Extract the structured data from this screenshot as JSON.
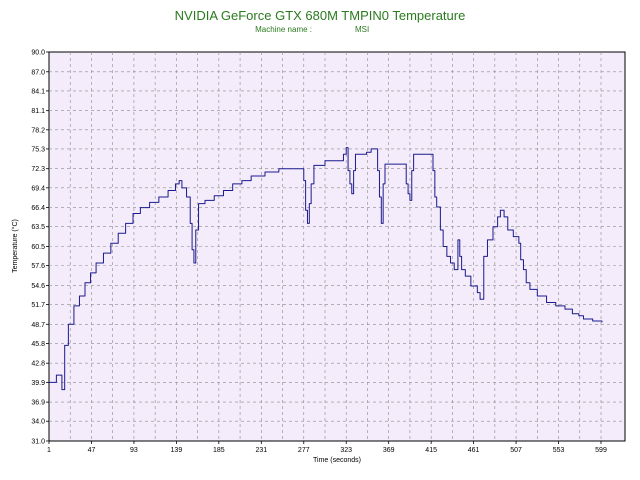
{
  "chart_data": {
    "type": "line",
    "title": "NVIDIA GeForce GTX 680M TMPIN0 Temperature",
    "subtitle_label": "Machine name :",
    "subtitle_value": "MSI",
    "xlabel": "Time (seconds)",
    "ylabel": "Temperature (°C)",
    "xlim": [
      1,
      625
    ],
    "ylim": [
      31.0,
      90.0
    ],
    "x_ticks": [
      "1",
      "47",
      "93",
      "139",
      "185",
      "231",
      "277",
      "323",
      "369",
      "415",
      "461",
      "507",
      "553",
      "599"
    ],
    "y_ticks": [
      "31.0",
      "34.0",
      "36.9",
      "39.9",
      "42.8",
      "45.8",
      "48.7",
      "51.7",
      "54.6",
      "57.6",
      "60.5",
      "63.5",
      "66.4",
      "69.4",
      "72.3",
      "75.3",
      "78.2",
      "81.1",
      "84.1",
      "87.0",
      "90.0"
    ],
    "grid": true,
    "colors": {
      "plot_background": "#f4ecfb",
      "grid": "#8a8a8a",
      "line": "#1a1a8c",
      "title": "#2a7a1e"
    },
    "series": [
      {
        "name": "",
        "points": [
          [
            1,
            39.9
          ],
          [
            8,
            39.9
          ],
          [
            9,
            41.0
          ],
          [
            14,
            41.0
          ],
          [
            15,
            38.8
          ],
          [
            16,
            38.8
          ],
          [
            18,
            45.5
          ],
          [
            22,
            48.7
          ],
          [
            28,
            51.5
          ],
          [
            34,
            53.0
          ],
          [
            40,
            55.0
          ],
          [
            46,
            56.5
          ],
          [
            52,
            58.0
          ],
          [
            60,
            59.5
          ],
          [
            68,
            61.0
          ],
          [
            76,
            62.5
          ],
          [
            84,
            64.0
          ],
          [
            92,
            65.5
          ],
          [
            100,
            66.4
          ],
          [
            110,
            67.2
          ],
          [
            120,
            68.0
          ],
          [
            130,
            69.0
          ],
          [
            138,
            70.0
          ],
          [
            142,
            70.5
          ],
          [
            145,
            69.4
          ],
          [
            150,
            68.0
          ],
          [
            154,
            64.0
          ],
          [
            156,
            60.0
          ],
          [
            158,
            58.0
          ],
          [
            160,
            63.0
          ],
          [
            163,
            67.0
          ],
          [
            170,
            67.5
          ],
          [
            180,
            68.2
          ],
          [
            190,
            69.0
          ],
          [
            200,
            70.0
          ],
          [
            210,
            70.5
          ],
          [
            220,
            71.2
          ],
          [
            235,
            71.8
          ],
          [
            250,
            72.3
          ],
          [
            270,
            72.3
          ],
          [
            275,
            72.3
          ],
          [
            277,
            70.5
          ],
          [
            279,
            66.0
          ],
          [
            281,
            64.0
          ],
          [
            283,
            67.0
          ],
          [
            285,
            70.0
          ],
          [
            288,
            72.8
          ],
          [
            300,
            73.5
          ],
          [
            320,
            74.5
          ],
          [
            323,
            75.5
          ],
          [
            325,
            72.0
          ],
          [
            327,
            70.0
          ],
          [
            329,
            68.5
          ],
          [
            331,
            72.0
          ],
          [
            333,
            74.5
          ],
          [
            345,
            74.8
          ],
          [
            350,
            75.3
          ],
          [
            355,
            75.3
          ],
          [
            357,
            72.0
          ],
          [
            359,
            68.0
          ],
          [
            361,
            64.0
          ],
          [
            363,
            70.0
          ],
          [
            365,
            73.0
          ],
          [
            385,
            73.0
          ],
          [
            388,
            70.0
          ],
          [
            390,
            68.5
          ],
          [
            392,
            67.5
          ],
          [
            394,
            72.0
          ],
          [
            396,
            74.5
          ],
          [
            405,
            74.5
          ],
          [
            410,
            74.5
          ],
          [
            415,
            74.5
          ],
          [
            417,
            72.0
          ],
          [
            419,
            68.0
          ],
          [
            421,
            66.5
          ],
          [
            425,
            63.0
          ],
          [
            428,
            60.5
          ],
          [
            432,
            59.0
          ],
          [
            436,
            58.0
          ],
          [
            440,
            57.0
          ],
          [
            444,
            61.5
          ],
          [
            446,
            59.0
          ],
          [
            448,
            57.0
          ],
          [
            452,
            56.0
          ],
          [
            458,
            54.5
          ],
          [
            465,
            53.5
          ],
          [
            468,
            52.5
          ],
          [
            470,
            52.5
          ],
          [
            472,
            59.0
          ],
          [
            476,
            61.5
          ],
          [
            482,
            63.5
          ],
          [
            487,
            65.0
          ],
          [
            490,
            66.0
          ],
          [
            494,
            65.0
          ],
          [
            498,
            63.0
          ],
          [
            504,
            62.0
          ],
          [
            510,
            61.0
          ],
          [
            512,
            58.5
          ],
          [
            515,
            57.0
          ],
          [
            518,
            55.0
          ],
          [
            522,
            54.0
          ],
          [
            530,
            53.0
          ],
          [
            540,
            52.0
          ],
          [
            550,
            51.5
          ],
          [
            560,
            51.0
          ],
          [
            568,
            50.3
          ],
          [
            575,
            50.0
          ],
          [
            580,
            49.5
          ],
          [
            590,
            49.2
          ],
          [
            600,
            49.0
          ]
        ]
      }
    ]
  }
}
